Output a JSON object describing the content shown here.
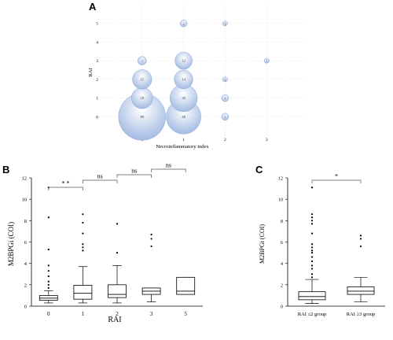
{
  "colors": {
    "bubble": "#a9bfe4",
    "bubble_edge": "#7f9bd0",
    "grid": "#d9d9d9",
    "ink": "#000000"
  },
  "chart_data": [
    {
      "panel": "A",
      "type": "scatter",
      "subtype": "bubble",
      "xlabel": "Necroinflammatory index",
      "ylabel": "RAI",
      "xlim": [
        -1,
        4
      ],
      "ylim": [
        -1,
        6
      ],
      "x_ticks": [
        "0",
        "1",
        "2",
        "3"
      ],
      "y_ticks": [
        "0",
        "1",
        "2",
        "3",
        "4",
        "5"
      ],
      "grid": "dotted",
      "points": [
        {
          "x": 0,
          "y": 0,
          "size": 89,
          "label": "89"
        },
        {
          "x": 0,
          "y": 1,
          "size": 18,
          "label": "18"
        },
        {
          "x": 0,
          "y": 2,
          "size": 15,
          "label": "15"
        },
        {
          "x": 0,
          "y": 3,
          "size": 3,
          "label": "3"
        },
        {
          "x": 1,
          "y": 0,
          "size": 48,
          "label": "48"
        },
        {
          "x": 1,
          "y": 1,
          "size": 30,
          "label": "30"
        },
        {
          "x": 1,
          "y": 2,
          "size": 14,
          "label": "14"
        },
        {
          "x": 1,
          "y": 3,
          "size": 12,
          "label": "12"
        },
        {
          "x": 1,
          "y": 5,
          "size": 2,
          "label": "2"
        },
        {
          "x": 2,
          "y": 0,
          "size": 2,
          "label": "2"
        },
        {
          "x": 2,
          "y": 1,
          "size": 2,
          "label": "2"
        },
        {
          "x": 2,
          "y": 2,
          "size": 1,
          "label": "1"
        },
        {
          "x": 2,
          "y": 5,
          "size": 1,
          "label": "1"
        },
        {
          "x": 3,
          "y": 3,
          "size": 1,
          "label": "1"
        }
      ]
    },
    {
      "panel": "B",
      "type": "box",
      "xlabel": "RAI",
      "ylabel": "M2BPGi (COI)",
      "ylim": [
        0,
        12
      ],
      "y_ticks": [
        "0",
        "2",
        "4",
        "6",
        "8",
        "10",
        "12"
      ],
      "categories": [
        "0",
        "1",
        "2",
        "3",
        "5"
      ],
      "boxes": [
        {
          "category": "0",
          "whisker_low": 0.3,
          "q1": 0.55,
          "median": 0.75,
          "q3": 1.0,
          "whisker_high": 1.45,
          "outliers": [
            1.7,
            2.0,
            2.3,
            2.8,
            3.3,
            3.8,
            5.3,
            8.3,
            11.1
          ]
        },
        {
          "category": "1",
          "whisker_low": 0.3,
          "q1": 0.65,
          "median": 1.2,
          "q3": 1.95,
          "whisker_high": 3.7,
          "outliers": [
            5.2,
            5.5,
            5.8,
            6.8,
            7.8,
            8.6
          ]
        },
        {
          "category": "2",
          "whisker_low": 0.3,
          "q1": 0.8,
          "median": 1.1,
          "q3": 2.0,
          "whisker_high": 3.8,
          "outliers": [
            5.0,
            7.7
          ]
        },
        {
          "category": "3",
          "whisker_low": 0.4,
          "q1": 1.1,
          "median": 1.4,
          "q3": 1.7,
          "whisker_high": 1.7,
          "outliers": [
            5.6,
            6.3,
            6.7
          ]
        },
        {
          "category": "5",
          "whisker_low": 1.1,
          "q1": 1.1,
          "median": 1.4,
          "q3": 2.7,
          "whisker_high": 2.7,
          "outliers": []
        }
      ],
      "annotations": [
        {
          "from": 0,
          "to": 1,
          "text": "* *"
        },
        {
          "from": 1,
          "to": 2,
          "text": "ns"
        },
        {
          "from": 2,
          "to": 3,
          "text": "ns"
        },
        {
          "from": 3,
          "to": 4,
          "text": "ns"
        }
      ]
    },
    {
      "panel": "C",
      "type": "box",
      "ylabel": "M2BPGi (COI)",
      "ylim": [
        0,
        12
      ],
      "y_ticks": [
        "0",
        "2",
        "4",
        "6",
        "8",
        "10",
        "12"
      ],
      "categories": [
        "RAI ≤2 group",
        "RAI ≥3 group"
      ],
      "boxes": [
        {
          "category": "RAI ≤2 group",
          "whisker_low": 0.25,
          "q1": 0.6,
          "median": 0.9,
          "q3": 1.35,
          "whisker_high": 2.5,
          "outliers": [
            2.7,
            3.0,
            3.5,
            3.8,
            4.2,
            4.6,
            5.0,
            5.2,
            5.5,
            5.8,
            6.8,
            7.7,
            8.0,
            8.3,
            8.6,
            11.1
          ]
        },
        {
          "category": "RAI ≥3 group",
          "whisker_low": 0.4,
          "q1": 1.1,
          "median": 1.4,
          "q3": 1.8,
          "whisker_high": 2.7,
          "outliers": [
            5.6,
            6.3,
            6.6
          ]
        }
      ],
      "annotations": [
        {
          "from": 0,
          "to": 1,
          "text": "*"
        }
      ]
    }
  ]
}
